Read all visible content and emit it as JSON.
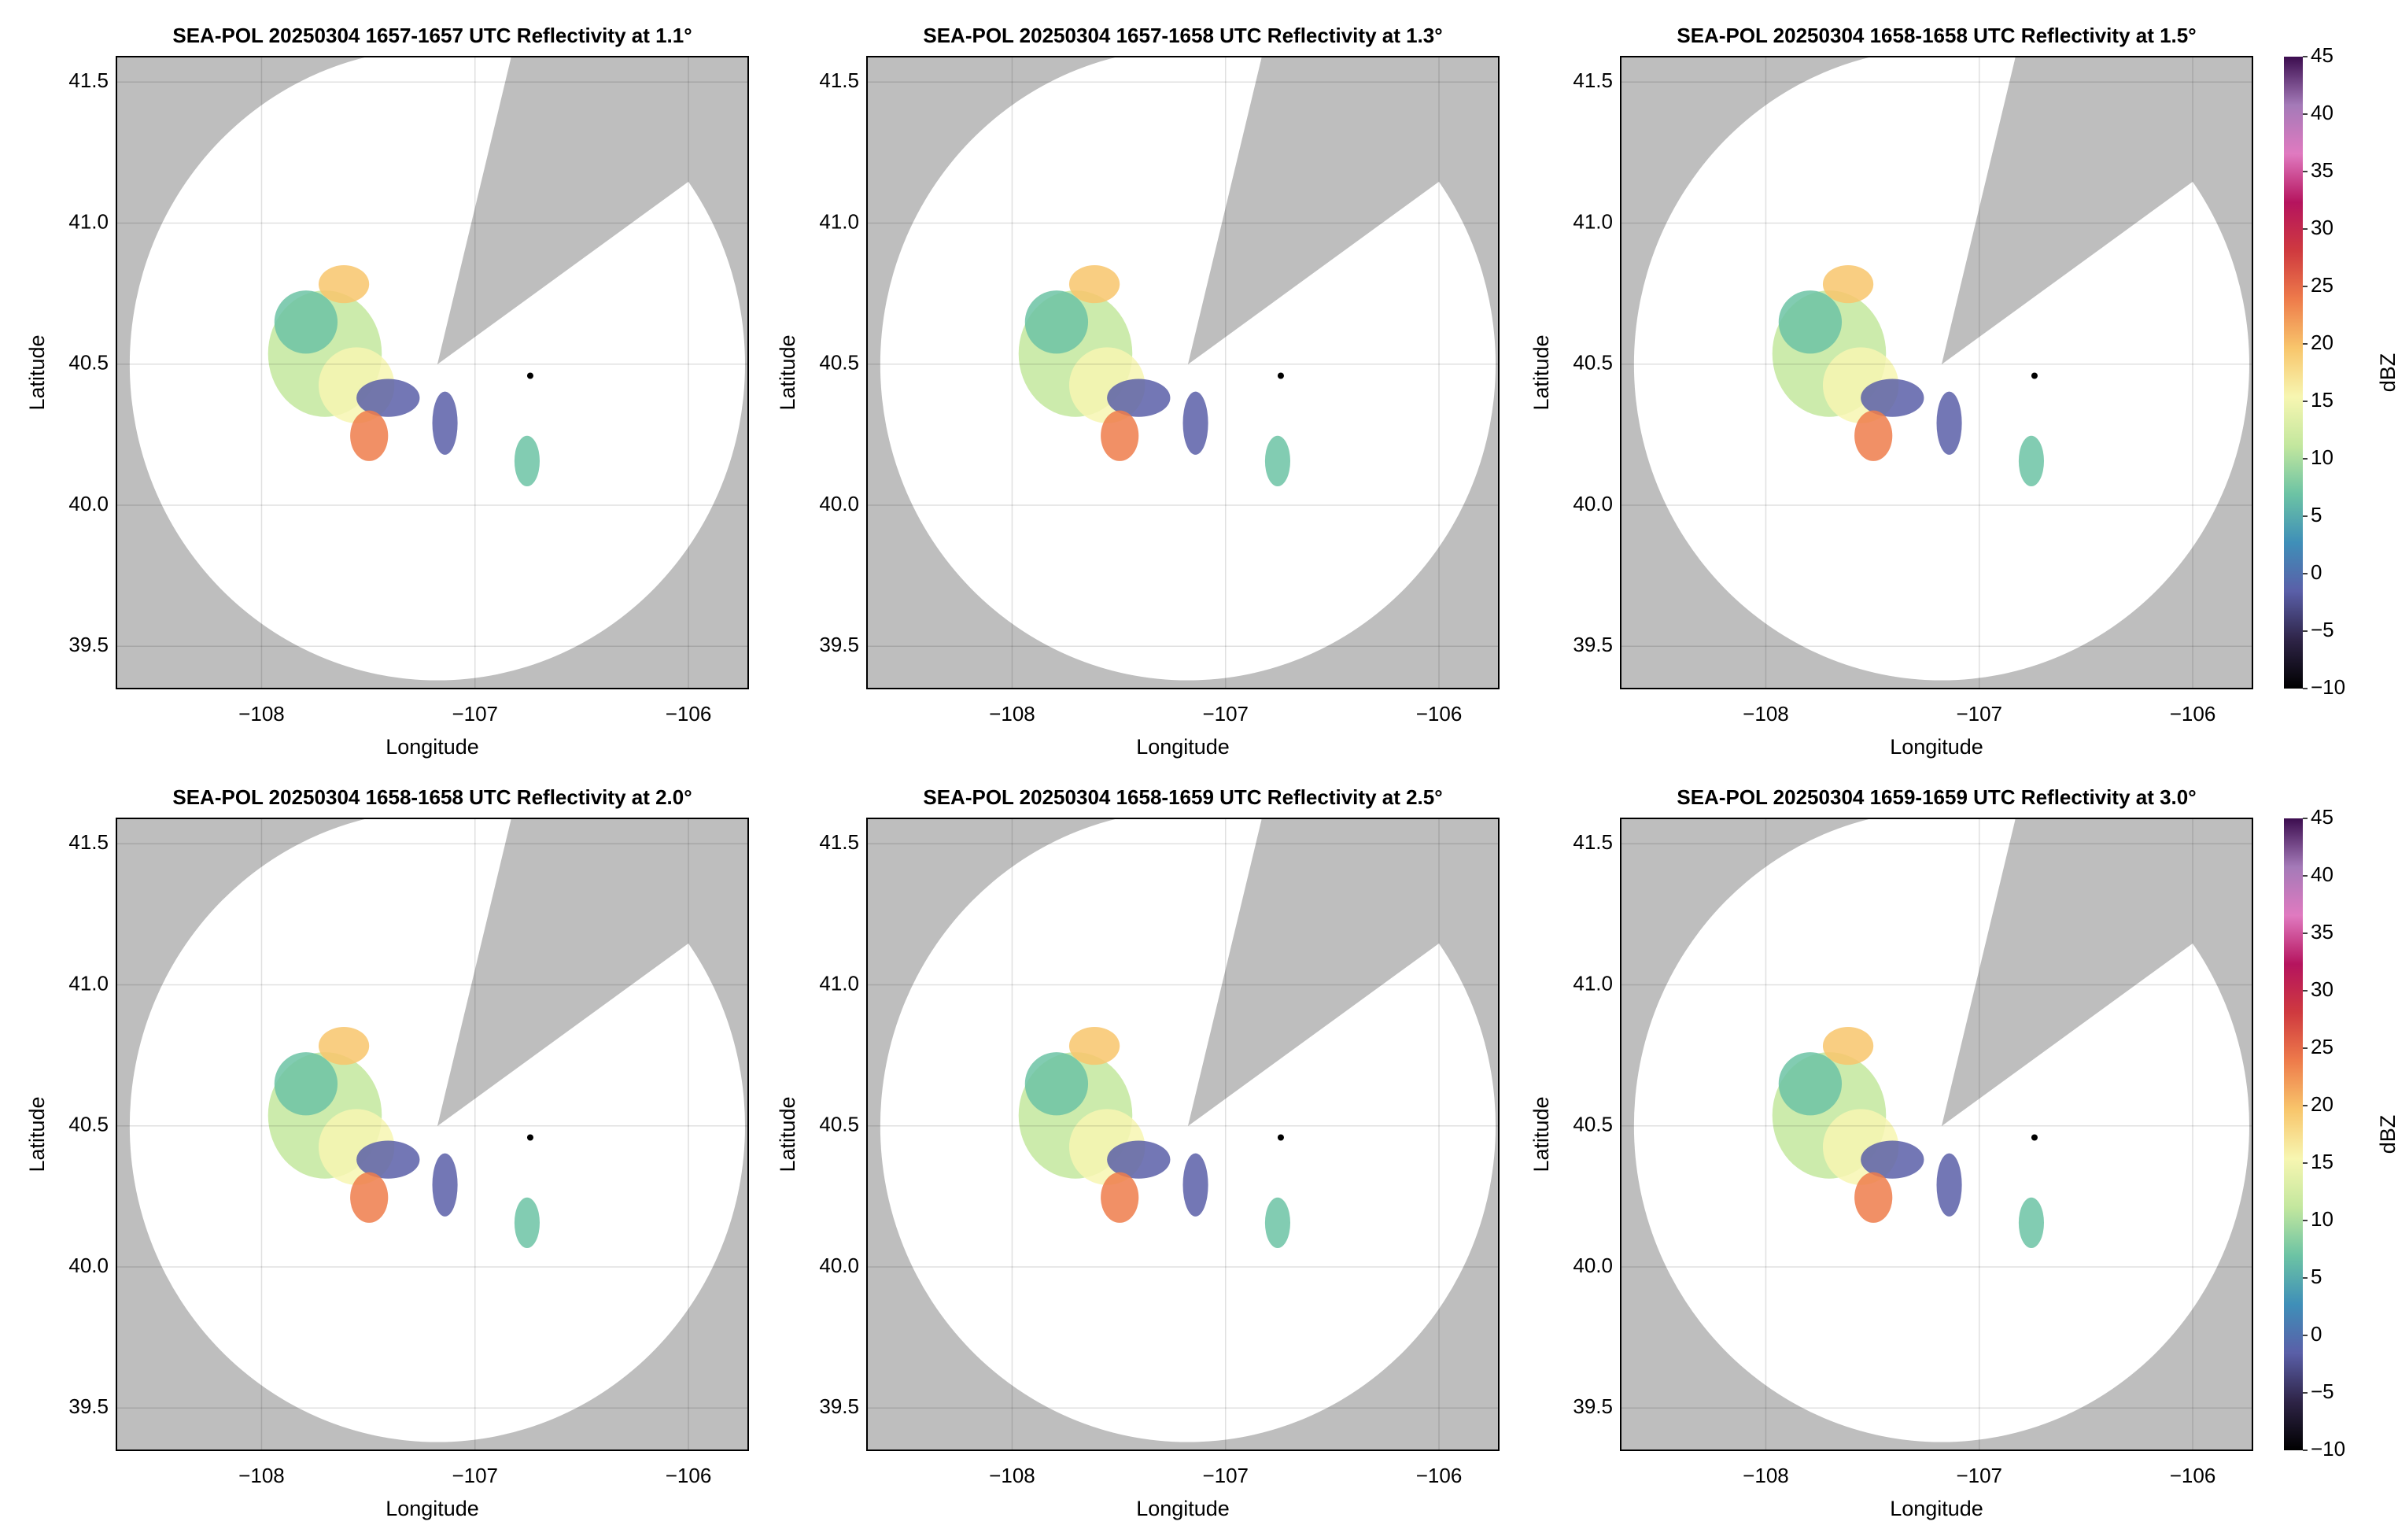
{
  "chart_data": [
    {
      "type": "heatmap",
      "title": "SEA-POL 20250304 1657-1657 UTC Reflectivity at 1.1°",
      "xlabel": "Longitude",
      "ylabel": "Latitude",
      "xlim": [
        -108.68,
        -105.72
      ],
      "ylim": [
        39.35,
        41.59
      ],
      "xticks": [
        {
          "value": -108,
          "label": "−108"
        },
        {
          "value": -107,
          "label": "−107"
        },
        {
          "value": -106,
          "label": "−106"
        }
      ],
      "yticks": [
        39.5,
        {
          "value": 40.0,
          "label": "40.0"
        },
        40.5,
        {
          "value": 41.0,
          "label": "41.0"
        },
        41.5
      ],
      "grid": true
    },
    {
      "type": "heatmap",
      "title": "SEA-POL 20250304 1657-1658 UTC Reflectivity at 1.3°",
      "xlabel": "Longitude",
      "ylabel": "Latitude",
      "xlim": [
        -108.68,
        -105.72
      ],
      "ylim": [
        39.35,
        41.59
      ],
      "xticks": [
        {
          "value": -108,
          "label": "−108"
        },
        {
          "value": -107,
          "label": "−107"
        },
        {
          "value": -106,
          "label": "−106"
        }
      ],
      "yticks": [
        39.5,
        {
          "value": 40.0,
          "label": "40.0"
        },
        40.5,
        {
          "value": 41.0,
          "label": "41.0"
        },
        41.5
      ],
      "grid": true
    },
    {
      "type": "heatmap",
      "title": "SEA-POL 20250304 1658-1658 UTC Reflectivity at 1.5°",
      "xlabel": "Longitude",
      "ylabel": "Latitude",
      "xlim": [
        -108.68,
        -105.72
      ],
      "ylim": [
        39.35,
        41.59
      ],
      "xticks": [
        {
          "value": -108,
          "label": "−108"
        },
        {
          "value": -107,
          "label": "−107"
        },
        {
          "value": -106,
          "label": "−106"
        }
      ],
      "yticks": [
        39.5,
        {
          "value": 40.0,
          "label": "40.0"
        },
        40.5,
        {
          "value": 41.0,
          "label": "41.0"
        },
        41.5
      ],
      "grid": true,
      "colorbar": {
        "label": "dBZ",
        "lim": [
          -10,
          45
        ],
        "ticks": [
          {
            "value": -10,
            "label": "−10"
          },
          {
            "value": -5,
            "label": "−5"
          },
          0,
          5,
          10,
          15,
          20,
          25,
          30,
          35,
          40,
          45
        ],
        "colors": [
          "#000000",
          "#2e2447",
          "#5a5fa8",
          "#3f8fb8",
          "#6cc3a4",
          "#c3e79e",
          "#f7f6b1",
          "#f8c66c",
          "#ee7c4b",
          "#cf3a3f",
          "#b5145e",
          "#e07ac0",
          "#a47ab8",
          "#3c0d4f"
        ]
      }
    },
    {
      "type": "heatmap",
      "title": "SEA-POL 20250304 1658-1658 UTC Reflectivity at 2.0°",
      "xlabel": "Longitude",
      "ylabel": "Latitude",
      "xlim": [
        -108.68,
        -105.72
      ],
      "ylim": [
        39.35,
        41.59
      ],
      "xticks": [
        {
          "value": -108,
          "label": "−108"
        },
        {
          "value": -107,
          "label": "−107"
        },
        {
          "value": -106,
          "label": "−106"
        }
      ],
      "yticks": [
        39.5,
        {
          "value": 40.0,
          "label": "40.0"
        },
        40.5,
        {
          "value": 41.0,
          "label": "41.0"
        },
        41.5
      ],
      "grid": true
    },
    {
      "type": "heatmap",
      "title": "SEA-POL 20250304 1658-1659 UTC Reflectivity at 2.5°",
      "xlabel": "Longitude",
      "ylabel": "Latitude",
      "xlim": [
        -108.68,
        -105.72
      ],
      "ylim": [
        39.35,
        41.59
      ],
      "xticks": [
        {
          "value": -108,
          "label": "−108"
        },
        {
          "value": -107,
          "label": "−107"
        },
        {
          "value": -106,
          "label": "−106"
        }
      ],
      "yticks": [
        39.5,
        {
          "value": 40.0,
          "label": "40.0"
        },
        40.5,
        {
          "value": 41.0,
          "label": "41.0"
        },
        41.5
      ],
      "grid": true
    },
    {
      "type": "heatmap",
      "title": "SEA-POL 20250304 1659-1659 UTC Reflectivity at 3.0°",
      "xlabel": "Longitude",
      "ylabel": "Latitude",
      "xlim": [
        -108.68,
        -105.72
      ],
      "ylim": [
        39.35,
        41.59
      ],
      "xticks": [
        {
          "value": -108,
          "label": "−108"
        },
        {
          "value": -107,
          "label": "−107"
        },
        {
          "value": -106,
          "label": "−106"
        }
      ],
      "yticks": [
        39.5,
        {
          "value": 40.0,
          "label": "40.0"
        },
        40.5,
        {
          "value": 41.0,
          "label": "41.0"
        },
        41.5
      ],
      "grid": true,
      "colorbar": {
        "label": "dBZ",
        "lim": [
          -10,
          45
        ],
        "ticks": [
          {
            "value": -10,
            "label": "−10"
          },
          {
            "value": -5,
            "label": "−5"
          },
          0,
          5,
          10,
          15,
          20,
          25,
          30,
          35,
          40,
          45
        ],
        "colors": [
          "#000000",
          "#2e2447",
          "#5a5fa8",
          "#3f8fb8",
          "#6cc3a4",
          "#c3e79e",
          "#f7f6b1",
          "#f8c66c",
          "#ee7c4b",
          "#cf3a3f",
          "#b5145e",
          "#e07ac0",
          "#a47ab8",
          "#3c0d4f"
        ]
      }
    }
  ]
}
